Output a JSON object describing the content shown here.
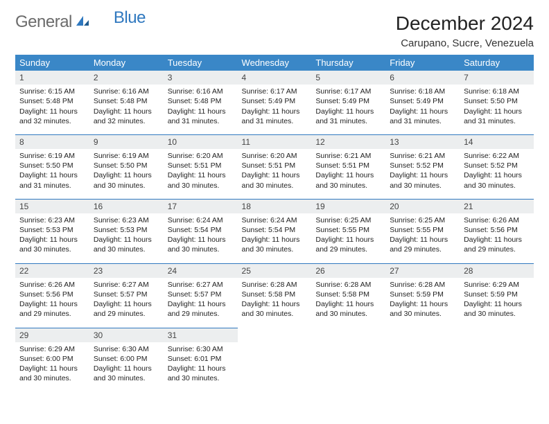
{
  "logo": {
    "text1": "General",
    "text2": "Blue"
  },
  "title": "December 2024",
  "location": "Carupano, Sucre, Venezuela",
  "header_bg": "#3a87c7",
  "header_fg": "#ffffff",
  "daynum_bg": "#eceeef",
  "rule_color": "#2f78bf",
  "day_labels": [
    "Sunday",
    "Monday",
    "Tuesday",
    "Wednesday",
    "Thursday",
    "Friday",
    "Saturday"
  ],
  "weeks": [
    [
      {
        "n": "1",
        "sr": "6:15 AM",
        "ss": "5:48 PM",
        "dl": "11 hours and 32 minutes."
      },
      {
        "n": "2",
        "sr": "6:16 AM",
        "ss": "5:48 PM",
        "dl": "11 hours and 32 minutes."
      },
      {
        "n": "3",
        "sr": "6:16 AM",
        "ss": "5:48 PM",
        "dl": "11 hours and 31 minutes."
      },
      {
        "n": "4",
        "sr": "6:17 AM",
        "ss": "5:49 PM",
        "dl": "11 hours and 31 minutes."
      },
      {
        "n": "5",
        "sr": "6:17 AM",
        "ss": "5:49 PM",
        "dl": "11 hours and 31 minutes."
      },
      {
        "n": "6",
        "sr": "6:18 AM",
        "ss": "5:49 PM",
        "dl": "11 hours and 31 minutes."
      },
      {
        "n": "7",
        "sr": "6:18 AM",
        "ss": "5:50 PM",
        "dl": "11 hours and 31 minutes."
      }
    ],
    [
      {
        "n": "8",
        "sr": "6:19 AM",
        "ss": "5:50 PM",
        "dl": "11 hours and 31 minutes."
      },
      {
        "n": "9",
        "sr": "6:19 AM",
        "ss": "5:50 PM",
        "dl": "11 hours and 30 minutes."
      },
      {
        "n": "10",
        "sr": "6:20 AM",
        "ss": "5:51 PM",
        "dl": "11 hours and 30 minutes."
      },
      {
        "n": "11",
        "sr": "6:20 AM",
        "ss": "5:51 PM",
        "dl": "11 hours and 30 minutes."
      },
      {
        "n": "12",
        "sr": "6:21 AM",
        "ss": "5:51 PM",
        "dl": "11 hours and 30 minutes."
      },
      {
        "n": "13",
        "sr": "6:21 AM",
        "ss": "5:52 PM",
        "dl": "11 hours and 30 minutes."
      },
      {
        "n": "14",
        "sr": "6:22 AM",
        "ss": "5:52 PM",
        "dl": "11 hours and 30 minutes."
      }
    ],
    [
      {
        "n": "15",
        "sr": "6:23 AM",
        "ss": "5:53 PM",
        "dl": "11 hours and 30 minutes."
      },
      {
        "n": "16",
        "sr": "6:23 AM",
        "ss": "5:53 PM",
        "dl": "11 hours and 30 minutes."
      },
      {
        "n": "17",
        "sr": "6:24 AM",
        "ss": "5:54 PM",
        "dl": "11 hours and 30 minutes."
      },
      {
        "n": "18",
        "sr": "6:24 AM",
        "ss": "5:54 PM",
        "dl": "11 hours and 30 minutes."
      },
      {
        "n": "19",
        "sr": "6:25 AM",
        "ss": "5:55 PM",
        "dl": "11 hours and 29 minutes."
      },
      {
        "n": "20",
        "sr": "6:25 AM",
        "ss": "5:55 PM",
        "dl": "11 hours and 29 minutes."
      },
      {
        "n": "21",
        "sr": "6:26 AM",
        "ss": "5:56 PM",
        "dl": "11 hours and 29 minutes."
      }
    ],
    [
      {
        "n": "22",
        "sr": "6:26 AM",
        "ss": "5:56 PM",
        "dl": "11 hours and 29 minutes."
      },
      {
        "n": "23",
        "sr": "6:27 AM",
        "ss": "5:57 PM",
        "dl": "11 hours and 29 minutes."
      },
      {
        "n": "24",
        "sr": "6:27 AM",
        "ss": "5:57 PM",
        "dl": "11 hours and 29 minutes."
      },
      {
        "n": "25",
        "sr": "6:28 AM",
        "ss": "5:58 PM",
        "dl": "11 hours and 30 minutes."
      },
      {
        "n": "26",
        "sr": "6:28 AM",
        "ss": "5:58 PM",
        "dl": "11 hours and 30 minutes."
      },
      {
        "n": "27",
        "sr": "6:28 AM",
        "ss": "5:59 PM",
        "dl": "11 hours and 30 minutes."
      },
      {
        "n": "28",
        "sr": "6:29 AM",
        "ss": "5:59 PM",
        "dl": "11 hours and 30 minutes."
      }
    ],
    [
      {
        "n": "29",
        "sr": "6:29 AM",
        "ss": "6:00 PM",
        "dl": "11 hours and 30 minutes."
      },
      {
        "n": "30",
        "sr": "6:30 AM",
        "ss": "6:00 PM",
        "dl": "11 hours and 30 minutes."
      },
      {
        "n": "31",
        "sr": "6:30 AM",
        "ss": "6:01 PM",
        "dl": "11 hours and 30 minutes."
      },
      null,
      null,
      null,
      null
    ]
  ],
  "labels": {
    "sunrise": "Sunrise:",
    "sunset": "Sunset:",
    "daylight": "Daylight:"
  }
}
